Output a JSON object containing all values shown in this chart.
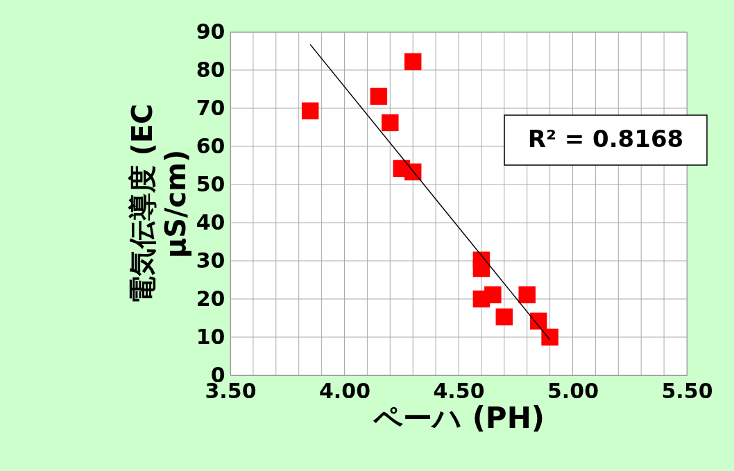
{
  "chart_data": {
    "type": "scatter",
    "xlabel": "ペーハ (PH)",
    "ylabel": "電気伝導度 (EC μS/cm)",
    "x": [
      3.85,
      4.15,
      4.3,
      4.2,
      4.25,
      4.3,
      4.6,
      4.6,
      4.6,
      4.65,
      4.7,
      4.8,
      4.85,
      4.9
    ],
    "series": [
      {
        "color": "#ff0000",
        "marker": "square",
        "values": [
          69.3,
          73.1,
          82.2,
          66.2,
          54.2,
          53.3,
          30.2,
          28,
          20,
          21.1,
          15.3,
          21.1,
          14.2,
          10
        ]
      },
      {
        "type": "line",
        "color": "#000000",
        "x": [
          3.85,
          4.9
        ],
        "values": [
          86.7,
          9.3
        ]
      }
    ],
    "annotations": [
      "R² = 0.8168"
    ],
    "xlim": [
      3.5,
      5.5
    ],
    "xticks": [
      {
        "value": 3.5,
        "label": "3.50"
      },
      {
        "value": 3.6,
        "label": null
      },
      {
        "value": 3.7,
        "label": null
      },
      {
        "value": 3.8,
        "label": null
      },
      {
        "value": 3.9,
        "label": null
      },
      {
        "value": 4.0,
        "label": "4.00"
      },
      {
        "value": 4.1,
        "label": null
      },
      {
        "value": 4.2,
        "label": null
      },
      {
        "value": 4.3,
        "label": null
      },
      {
        "value": 4.4,
        "label": null
      },
      {
        "value": 4.5,
        "label": "4.50"
      },
      {
        "value": 4.6,
        "label": null
      },
      {
        "value": 4.7,
        "label": null
      },
      {
        "value": 4.8,
        "label": null
      },
      {
        "value": 4.9,
        "label": null
      },
      {
        "value": 5.0,
        "label": "5.00"
      },
      {
        "value": 5.1,
        "label": null
      },
      {
        "value": 5.2,
        "label": null
      },
      {
        "value": 5.3,
        "label": null
      },
      {
        "value": 5.4,
        "label": null
      },
      {
        "value": 5.5,
        "label": "5.50"
      }
    ],
    "ylim": [
      0,
      90
    ],
    "yticks": [
      0,
      10,
      20,
      30,
      40,
      50,
      60,
      70,
      80,
      90
    ],
    "grid": true
  }
}
